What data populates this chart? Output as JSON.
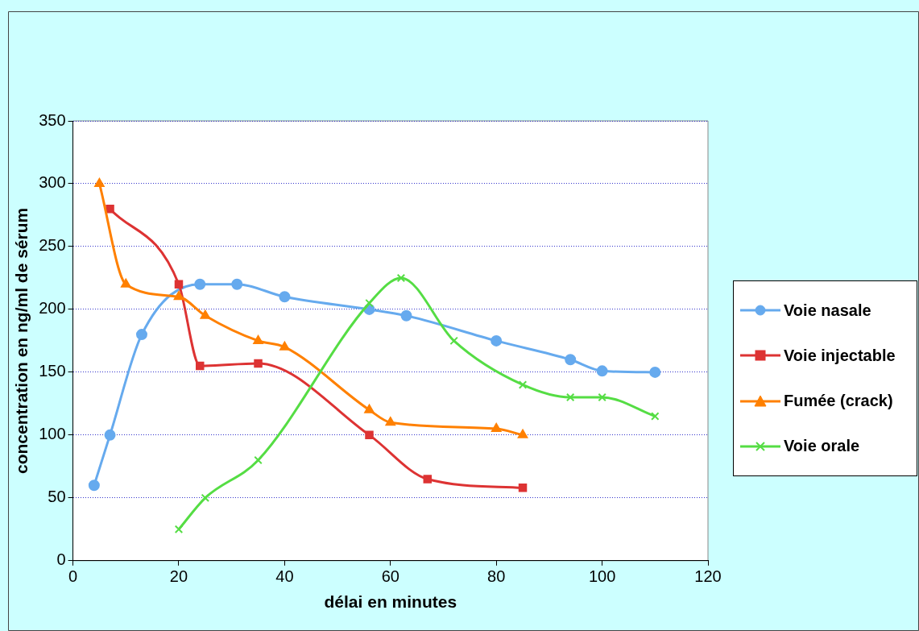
{
  "chart_data": {
    "type": "line",
    "xlabel": "délai en minutes",
    "ylabel": "concentration en ng/ml de sérum",
    "xlim": [
      0,
      120
    ],
    "xticks": [
      0,
      20,
      40,
      60,
      80,
      100,
      120
    ],
    "ylim": [
      0,
      350
    ],
    "yticks": [
      0,
      50,
      100,
      150,
      200,
      250,
      300,
      350
    ],
    "grid": "y",
    "legend": "right",
    "series": [
      {
        "name": "Voie nasale",
        "color": "#66aaee",
        "marker": "circle",
        "x": [
          4,
          7,
          13,
          24,
          31,
          40,
          56,
          63,
          80,
          94,
          100,
          110
        ],
        "values": [
          60,
          100,
          180,
          220,
          220,
          210,
          200,
          195,
          175,
          160,
          151,
          150
        ]
      },
      {
        "name": "Voie injectable",
        "color": "#dd3333",
        "marker": "square",
        "x": [
          7,
          20,
          24,
          35,
          56,
          67,
          85
        ],
        "values": [
          280,
          220,
          155,
          157,
          100,
          65,
          58
        ]
      },
      {
        "name": "Fumée (crack)",
        "color": "#ff8000",
        "marker": "triangle",
        "x": [
          5,
          10,
          20,
          25,
          35,
          40,
          56,
          60,
          80,
          85
        ],
        "values": [
          300,
          220,
          210,
          195,
          175,
          170,
          120,
          110,
          105,
          100
        ]
      },
      {
        "name": "Voie orale",
        "color": "#55dd44",
        "marker": "cross",
        "x": [
          20,
          25,
          35,
          56,
          62,
          72,
          85,
          94,
          100,
          110
        ],
        "values": [
          25,
          50,
          80,
          205,
          225,
          175,
          140,
          130,
          130,
          115
        ]
      }
    ]
  }
}
